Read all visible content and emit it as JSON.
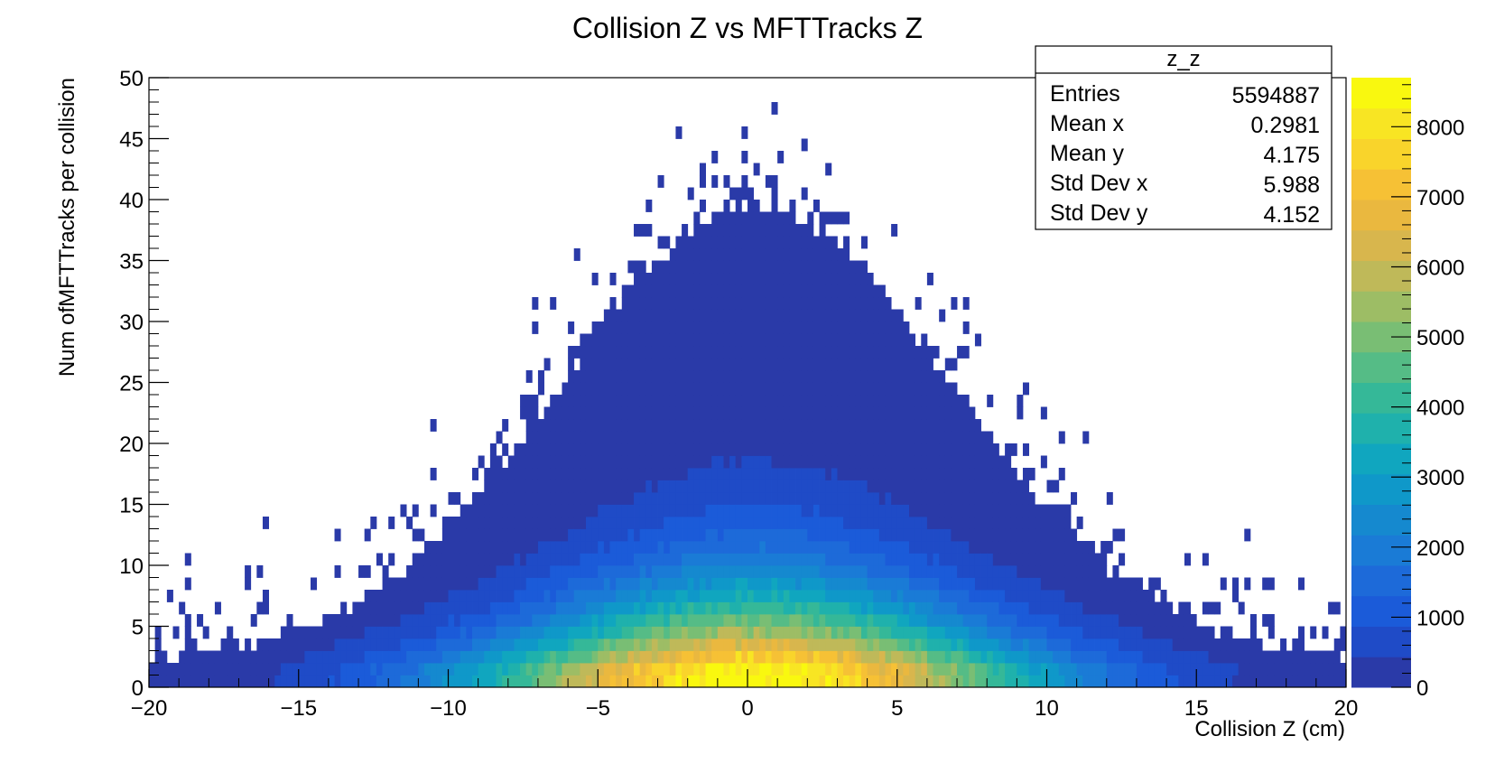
{
  "chart_data": {
    "type": "heatmap",
    "title": "Collision Z vs MFTTracks Z",
    "xlabel": "Collision Z (cm)",
    "ylabel": "Num ofMFTTracks per collision",
    "xlim": [
      -20,
      20
    ],
    "ylim": [
      0,
      50
    ],
    "zlim": [
      0,
      8700
    ],
    "x_ticks": [
      -20,
      -15,
      -10,
      -5,
      0,
      5,
      10,
      15,
      20
    ],
    "x_tick_labels": [
      "−20",
      "−15",
      "−10",
      "−5",
      "0",
      "5",
      "10",
      "15",
      "20"
    ],
    "y_ticks": [
      0,
      5,
      10,
      15,
      20,
      25,
      30,
      35,
      40,
      45,
      50
    ],
    "y_tick_labels": [
      "0",
      "5",
      "10",
      "15",
      "20",
      "25",
      "30",
      "35",
      "40",
      "45",
      "50"
    ],
    "z_ticks": [
      0,
      1000,
      2000,
      3000,
      4000,
      5000,
      6000,
      7000,
      8000
    ],
    "z_tick_labels": [
      "0",
      "1000",
      "2000",
      "3000",
      "4000",
      "5000",
      "6000",
      "7000",
      "8000"
    ],
    "bins": {
      "nx": 200,
      "ny": 50,
      "dx": 0.2,
      "dy": 1
    },
    "palette_colors": [
      "#2a3aa8",
      "#1f4bc7",
      "#1b5bd9",
      "#1d6ad9",
      "#1a7bd6",
      "#1589cf",
      "#0f98c9",
      "#10a6bf",
      "#1fb1ac",
      "#35b898",
      "#55bc86",
      "#79be74",
      "#9dbd65",
      "#bfb959",
      "#d8b64d",
      "#eab83f",
      "#f6c135",
      "#f9d42b",
      "#f8e523",
      "#f9f80f"
    ],
    "color_scale": "viridis-like (Kind Bird)",
    "model": {
      "description": "Counts per bin approximately follow a Poisson-like distribution in y with mean ~4 and spread broadening toward z = 0",
      "x_mean": 0.2981,
      "x_std": 5.988,
      "y_mean": 4.175,
      "y_std": 4.152,
      "peak_count": 8700
    },
    "stats_box": {
      "title": "z_z",
      "rows": [
        {
          "label": "Entries",
          "value": "5594887"
        },
        {
          "label": "Mean x",
          "value": "0.2981"
        },
        {
          "label": "Mean y",
          "value": "4.175"
        },
        {
          "label": "Std Dev x",
          "value": "5.988"
        },
        {
          "label": "Std Dev y",
          "value": "4.152"
        }
      ]
    }
  }
}
